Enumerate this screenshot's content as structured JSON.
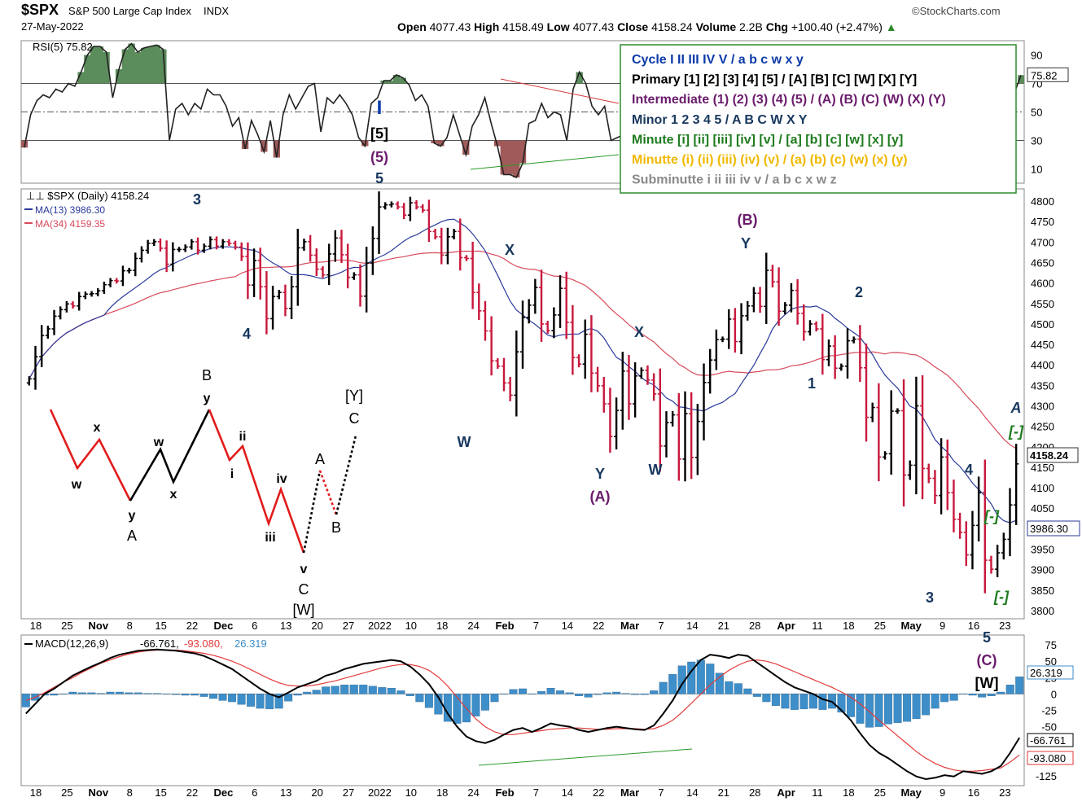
{
  "header": {
    "symbol": "$SPX",
    "name": "S&P 500 Large Cap Index",
    "exchange": "INDX",
    "date": "27-May-2022",
    "source": "©StockCharts.com",
    "open_label": "Open",
    "open": "4077.43",
    "high_label": "High",
    "high": "4158.49",
    "low_label": "Low",
    "low": "4077.43",
    "close_label": "Close",
    "close": "4158.24",
    "volume_label": "Volume",
    "volume": "2.2B",
    "chg_label": "Chg",
    "chg": "+100.40 (+2.47%)",
    "chg_arrow": "▲"
  },
  "legend_box": {
    "lines": [
      {
        "text": "Cycle I II III IV V / a b c w x y",
        "color": "#0b3aa8"
      },
      {
        "text": "Primary [1] [2] [3] [4] [5] / [A] [B] [C] [W] [X] [Y]",
        "color": "#000000"
      },
      {
        "text": "Intermediate (1) (2) (3) (4) (5) / (A) (B) (C) (W) (X) (Y)",
        "color": "#6a1b6b"
      },
      {
        "text": "Minor 1 2 3 4 5 / A B C W X Y",
        "color": "#17375e"
      },
      {
        "text": "Minute [i] [ii] [iii] [iv] [v] / [a] [b] [c] [w] [x] [y]",
        "color": "#1e7b1e"
      },
      {
        "text": "Minutte (i) (ii) (iii) (iv) (v) / (a) (b) (c) (w) (x) (y)",
        "color": "#f0b800"
      },
      {
        "text": "Subminutte i ii iii iv v / a b c x w z",
        "color": "#8a8a8a"
      }
    ],
    "border_color": "#2e8b2e"
  },
  "chart_data": [
    {
      "type": "line",
      "panel": "rsi",
      "label": "RSI(5) 75.82",
      "last_value": "75.82",
      "ylim": [
        0,
        100
      ],
      "ticks": [
        "90",
        "70",
        "50",
        "30",
        "10"
      ],
      "reference_lines": [
        70,
        50,
        30
      ],
      "series": [
        {
          "name": "RSI(5)",
          "values": [
            25,
            48,
            58,
            62,
            60,
            66,
            64,
            70,
            68,
            78,
            90,
            96,
            96,
            92,
            60,
            80,
            94,
            98,
            92,
            95,
            96,
            97,
            94,
            30,
            52,
            56,
            48,
            56,
            52,
            66,
            62,
            62,
            54,
            40,
            46,
            24,
            44,
            34,
            22,
            44,
            18,
            48,
            62,
            52,
            60,
            68,
            70,
            36,
            60,
            56,
            62,
            56,
            48,
            32,
            26,
            56,
            60,
            72,
            72,
            76,
            74,
            69,
            58,
            62,
            54,
            28,
            26,
            32,
            48,
            34,
            20,
            40,
            48,
            60,
            42,
            26,
            6,
            6,
            4,
            14,
            42,
            44,
            56,
            46,
            50,
            48,
            30,
            66,
            78,
            70,
            54,
            48,
            54,
            30,
            32,
            34,
            38,
            14,
            40,
            48,
            62,
            64,
            55,
            34,
            12,
            58,
            56,
            44,
            22,
            34,
            30,
            20,
            34,
            60,
            64,
            66,
            70,
            72,
            68,
            74,
            80,
            52,
            80,
            72,
            58,
            62,
            44,
            30,
            62,
            70,
            38,
            40,
            36,
            30,
            18,
            48,
            62,
            66,
            70,
            46,
            28,
            20,
            30,
            44,
            66,
            40,
            52,
            34,
            38,
            60,
            34,
            20,
            48,
            60,
            42,
            20,
            44,
            64,
            75.82
          ]
        }
      ],
      "area_fill": {
        "above": 70,
        "below": 30,
        "green": "#5b8c5b",
        "red": "#a05a5a"
      }
    },
    {
      "type": "ohlc",
      "panel": "price",
      "label": "$SPX (Daily) 4158.24",
      "ylim": [
        3780,
        4830
      ],
      "y_ticks": [
        4800,
        4750,
        4700,
        4650,
        4600,
        4550,
        4500,
        4450,
        4400,
        4350,
        4300,
        4250,
        4200,
        4150,
        4100,
        4050,
        4000,
        3950,
        3900,
        3850,
        3800
      ],
      "x_labels": [
        "18",
        "25",
        "Nov",
        "8",
        "15",
        "22",
        "Dec",
        "6",
        "13",
        "20",
        "27",
        "2022",
        "10",
        "18",
        "24",
        "Feb",
        "7",
        "14",
        "22",
        "Mar",
        "7",
        "14",
        "21",
        "28",
        "Apr",
        "11",
        "18",
        "25",
        "May",
        "9",
        "16",
        "23"
      ],
      "series": [
        {
          "name": "$SPX",
          "values": [
            4366,
            4420,
            4472,
            4488,
            4519,
            4535,
            4549,
            4544,
            4567,
            4573,
            4574,
            4581,
            4596,
            4606,
            4605,
            4630,
            4631,
            4660,
            4680,
            4697,
            4701,
            4685,
            4646,
            4682,
            4682,
            4688,
            4701,
            4680,
            4690,
            4706,
            4690,
            4701,
            4697,
            4688,
            4665,
            4595,
            4655,
            4591,
            4513,
            4567,
            4577,
            4538,
            4591,
            4686,
            4701,
            4668,
            4634,
            4620,
            4671,
            4710,
            4669,
            4614,
            4620,
            4568,
            4649,
            4709,
            4786,
            4791,
            4793,
            4786,
            4766,
            4796,
            4786,
            4778,
            4726,
            4713,
            4668,
            4713,
            4726,
            4662,
            4660,
            4577,
            4532,
            4483,
            4410,
            4397,
            4356,
            4326,
            4432,
            4516,
            4546,
            4589,
            4500,
            4484,
            4522,
            4587,
            4504,
            4418,
            4402,
            4475,
            4380,
            4349,
            4305,
            4225,
            4289,
            4385,
            4305,
            4373,
            4387,
            4363,
            4329,
            4202,
            4259,
            4278,
            4170,
            4281,
            4174,
            4262,
            4357,
            4412,
            4462,
            4463,
            4512,
            4457,
            4520,
            4544,
            4575,
            4543,
            4631,
            4603,
            4531,
            4546,
            4582,
            4526,
            4481,
            4500,
            4488,
            4413,
            4446,
            4392,
            4397,
            4459,
            4463,
            4393,
            4272,
            4296,
            4175,
            4183,
            4287,
            4288,
            4131,
            4155,
            4300,
            4147,
            4123,
            4081,
            4175,
            4088,
            4023,
            3991,
            3936,
            4008,
            4088,
            3923,
            3901,
            3941,
            3974,
            4058,
            4158.24
          ]
        }
      ],
      "moving_averages": [
        {
          "name": "MA(13)",
          "value": "3986.30",
          "color": "#2b3a9b"
        },
        {
          "name": "MA(34)",
          "value": "4159.35",
          "color": "#d84a5c"
        }
      ],
      "last_close_tag": "4158.24",
      "ma13_tag": "3986.30",
      "wave_labels": [
        {
          "text": "3",
          "color": "#17375e"
        },
        {
          "text": "4",
          "color": "#17375e"
        },
        {
          "text": "I",
          "color": "#0b3aa8"
        },
        {
          "text": "[5]",
          "color": "#000000"
        },
        {
          "text": "(5)",
          "color": "#6a1b6b"
        },
        {
          "text": "5",
          "color": "#17375e"
        },
        {
          "text": "W",
          "color": "#17375e"
        },
        {
          "text": "X",
          "color": "#17375e"
        },
        {
          "text": "Y",
          "color": "#17375e"
        },
        {
          "text": "(A)",
          "color": "#6a1b6b"
        },
        {
          "text": "W",
          "color": "#17375e"
        },
        {
          "text": "X",
          "color": "#17375e"
        },
        {
          "text": "(B)",
          "color": "#6a1b6b"
        },
        {
          "text": "Y",
          "color": "#17375e"
        },
        {
          "text": "2",
          "color": "#17375e"
        },
        {
          "text": "1",
          "color": "#17375e"
        },
        {
          "text": "A",
          "color": "#17375e"
        },
        {
          "text": "[-]",
          "color": "#1e7b1e"
        },
        {
          "text": "4",
          "color": "#17375e"
        },
        {
          "text": "[-]",
          "color": "#1e7b1e"
        },
        {
          "text": "[-]",
          "color": "#1e7b1e"
        },
        {
          "text": "3",
          "color": "#17375e"
        },
        {
          "text": "5",
          "color": "#17375e"
        },
        {
          "text": "(C)",
          "color": "#6a1b6b"
        },
        {
          "text": "[W]",
          "color": "#000000"
        }
      ],
      "schematic_labels": [
        "w",
        "x",
        "y",
        "A",
        "w",
        "x",
        "B",
        "y",
        "ii",
        "i",
        "iv",
        "iii",
        "v",
        "C",
        "[W]",
        "A",
        "B",
        "[Y]",
        "C"
      ]
    },
    {
      "type": "bar",
      "panel": "macd",
      "label": "MACD(12,26,9)",
      "macd": "-66.761",
      "signal": "-93.080",
      "histogram": "26.319",
      "ylim": [
        -140,
        90
      ],
      "ticks": [
        "75",
        "50",
        "25",
        "0",
        "-25",
        "-50",
        "-75",
        "-100",
        "-125"
      ],
      "series": [
        {
          "name": "MACD",
          "values": [
            -30,
            -15,
            0,
            8,
            18,
            28,
            35,
            42,
            48,
            55,
            60,
            63,
            66,
            67,
            68,
            67,
            66,
            64,
            62,
            58,
            52,
            45,
            38,
            28,
            18,
            8,
            0,
            -5,
            2,
            10,
            15,
            20,
            28,
            32,
            38,
            42,
            46,
            48,
            50,
            52,
            50,
            42,
            30,
            15,
            -5,
            -30,
            -50,
            -65,
            -72,
            -75,
            -70,
            -62,
            -55,
            -52,
            -58,
            -52,
            -45,
            -48,
            -50,
            -55,
            -58,
            -55,
            -52,
            -50,
            -52,
            -54,
            -55,
            -48,
            -30,
            -10,
            15,
            35,
            52,
            60,
            58,
            55,
            60,
            58,
            48,
            38,
            28,
            18,
            10,
            5,
            0,
            -8,
            -12,
            -25,
            -40,
            -60,
            -78,
            -90,
            -98,
            -108,
            -118,
            -126,
            -130,
            -128,
            -124,
            -126,
            -118,
            -120,
            -122,
            -118,
            -110,
            -90,
            -66.761
          ]
        },
        {
          "name": "Signal",
          "values": [
            -10,
            -5,
            2,
            10,
            18,
            25,
            33,
            40,
            47,
            52,
            57,
            61,
            64,
            66,
            67,
            67,
            67,
            66,
            64,
            62,
            59,
            55,
            50,
            44,
            37,
            30,
            23,
            17,
            13,
            12,
            12,
            14,
            17,
            20,
            24,
            28,
            32,
            36,
            40,
            43,
            45,
            45,
            42,
            36,
            26,
            12,
            -5,
            -22,
            -38,
            -50,
            -58,
            -62,
            -62,
            -60,
            -58,
            -56,
            -54,
            -53,
            -52,
            -52,
            -53,
            -54,
            -54,
            -53,
            -53,
            -53,
            -54,
            -53,
            -48,
            -40,
            -28,
            -14,
            0,
            14,
            26,
            36,
            44,
            50,
            52,
            50,
            46,
            40,
            34,
            28,
            22,
            16,
            10,
            3,
            -5,
            -15,
            -27,
            -40,
            -52,
            -64,
            -76,
            -88,
            -98,
            -106,
            -112,
            -116,
            -118,
            -118,
            -117,
            -115,
            -113,
            -104,
            -93.08
          ]
        }
      ],
      "colors": {
        "macd": "#000000",
        "signal": "#e23a3a",
        "histogram": "#3d8ec9"
      }
    }
  ]
}
